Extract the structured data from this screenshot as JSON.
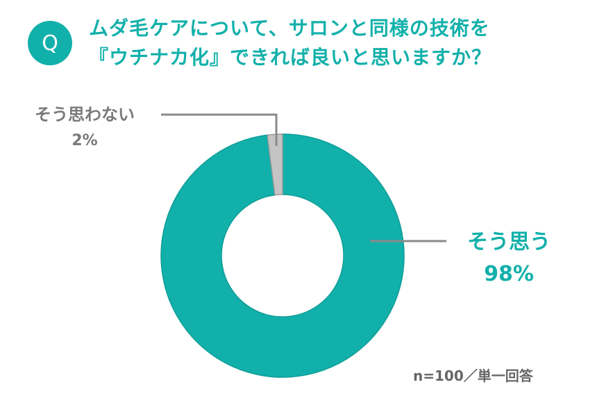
{
  "question_badge": "Q",
  "title_lines": [
    "ムダ毛ケアについて、サロンと同様の技術を",
    "『ウチナカ化』できれば良いと思いますか？"
  ],
  "note": "n=100／単一回答",
  "colors": {
    "accent": "#12b0aa",
    "agree": "#12b0aa",
    "disagree": "#c4c4c4",
    "gray_text": "#7a7a7a",
    "leader": "#8a8a8a"
  },
  "chart_data": {
    "type": "pie",
    "variant": "donut",
    "slices": [
      {
        "label": "そう思う",
        "value": 98,
        "display": "98%",
        "color": "#12b0aa"
      },
      {
        "label": "そう思わない",
        "value": 2,
        "display": "2%",
        "color": "#c4c4c4"
      }
    ]
  }
}
